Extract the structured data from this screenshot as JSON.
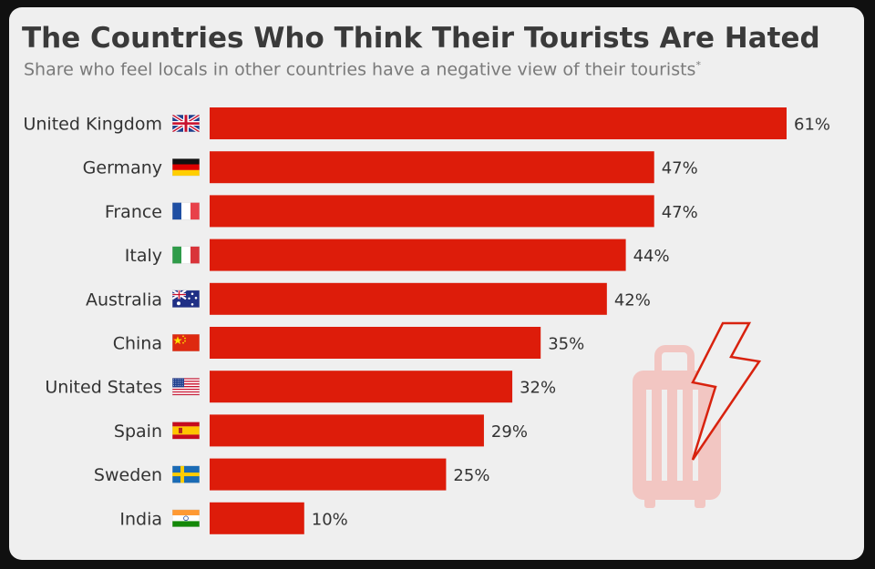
{
  "title": "The Countries Who Think Their Tourists Are Hated",
  "subtitle": "Share who feel locals in other countries have a negative view of their tourists",
  "subtitle_note_marker": "*",
  "colors": {
    "bar": "#dd1c0a",
    "background": "#efefef",
    "illustration": "#f2c6c2",
    "bolt": "#d8220e"
  },
  "illustration": {
    "icon": "suitcase-lightning-icon"
  },
  "chart_data": {
    "type": "bar",
    "orientation": "horizontal",
    "categories": [
      "United Kingdom",
      "Germany",
      "France",
      "Italy",
      "Australia",
      "China",
      "United States",
      "Spain",
      "Sweden",
      "India"
    ],
    "values": [
      61,
      47,
      47,
      44,
      42,
      35,
      32,
      29,
      25,
      10
    ],
    "value_labels": [
      "61%",
      "47%",
      "47%",
      "44%",
      "42%",
      "35%",
      "32%",
      "29%",
      "25%",
      "10%"
    ],
    "flags": [
      "uk-flag-icon",
      "germany-flag-icon",
      "france-flag-icon",
      "italy-flag-icon",
      "australia-flag-icon",
      "china-flag-icon",
      "us-flag-icon",
      "spain-flag-icon",
      "sweden-flag-icon",
      "india-flag-icon"
    ],
    "unit": "%",
    "xlim": [
      0,
      61
    ],
    "grid": false,
    "legend": "none"
  }
}
